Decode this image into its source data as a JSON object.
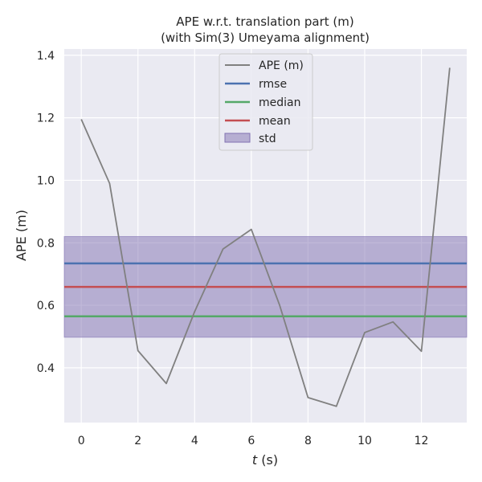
{
  "chart_data": {
    "type": "line",
    "title": "APE w.r.t. translation part (m)",
    "subtitle": "(with Sim(3) Umeyama alignment)",
    "xlabel_italic": "t",
    "xlabel_unit": " (s)",
    "ylabel": "APE (m)",
    "xlim": [
      -0.6,
      13.6
    ],
    "ylim": [
      0.225,
      1.42
    ],
    "x_ticks": [
      0,
      2,
      4,
      6,
      8,
      10,
      12
    ],
    "y_ticks": [
      0.4,
      0.6,
      0.8,
      1.0,
      1.2,
      1.4
    ],
    "y_tick_labels": [
      "0.4",
      "0.6",
      "0.8",
      "1.0",
      "1.2",
      "1.4"
    ],
    "grid": true,
    "legend_position": "top-center",
    "series": [
      {
        "name": "APE (m)",
        "color": "#808080",
        "x": [
          0,
          1,
          2,
          3,
          4,
          5,
          6,
          7,
          8,
          9,
          10,
          11,
          12,
          13
        ],
        "values": [
          1.195,
          0.99,
          0.455,
          0.35,
          0.58,
          0.78,
          0.843,
          0.6,
          0.305,
          0.277,
          0.513,
          0.547,
          0.453,
          1.36
        ]
      }
    ],
    "stats": {
      "rmse": {
        "name": "rmse",
        "value": 0.734,
        "color": "#4c72b0"
      },
      "median": {
        "name": "median",
        "value": 0.565,
        "color": "#55a868"
      },
      "mean": {
        "name": "mean",
        "value": 0.659,
        "color": "#c44e52"
      },
      "std": {
        "name": "std",
        "low": 0.498,
        "high": 0.82,
        "color": "#8172b2"
      }
    }
  }
}
